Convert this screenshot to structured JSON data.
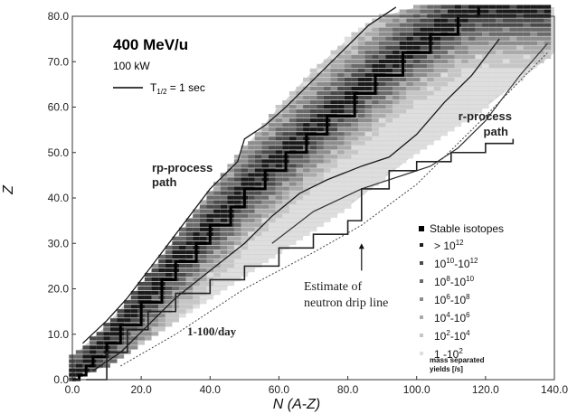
{
  "chart_data": {
    "type": "scatter",
    "title": "400 MeV/u",
    "subtitle": "100 kW",
    "xlabel": "N (A-Z)",
    "ylabel": "Z",
    "xlim": [
      0,
      140
    ],
    "ylim": [
      0,
      80
    ],
    "x_ticks": [
      "0.0",
      "20.0",
      "40.0",
      "60.0",
      "80.0",
      "100.0",
      "120.0",
      "140.0"
    ],
    "y_ticks": [
      "0.0",
      "10.0",
      "20.0",
      "30.0",
      "40.0",
      "50.0",
      "60.0",
      "70.0",
      "80.0"
    ],
    "half_life_label": "T",
    "half_life_sub": "1/2",
    "half_life_value": " = 1 sec",
    "legend_position": "bottom-right",
    "legend": {
      "stable": "Stable isotopes",
      "bins": [
        {
          "label": "> 10",
          "sup": "12",
          "color": "#1a1a1a"
        },
        {
          "label": "10",
          "sup": "10",
          "mid": "-10",
          "sup2": "12",
          "color": "#4a4a4a"
        },
        {
          "label": "10",
          "sup": "8",
          "mid": "-10",
          "sup2": "10",
          "color": "#6a6a6a"
        },
        {
          "label": "10",
          "sup": "6",
          "mid": "-10",
          "sup2": "8",
          "color": "#8c8c8c"
        },
        {
          "label": "10",
          "sup": "4",
          "mid": "-10",
          "sup2": "6",
          "color": "#aaaaaa"
        },
        {
          "label": "10",
          "sup": "2",
          "mid": "-10",
          "sup2": "4",
          "color": "#c6c6c6"
        },
        {
          "label": "1   -10",
          "sup": "2",
          "color": "#dedede"
        }
      ],
      "yields_note_line1": "mass separated",
      "yields_note_line2": "yields [/s]"
    },
    "annotations": {
      "rp_line1": "rp-process",
      "rp_line2": "path",
      "r_line1": "r-process",
      "r_line2": "path",
      "drip_line1": "Estimate of",
      "drip_line2": "neutron drip line",
      "day_label": "1-100/day"
    },
    "stable_valley": [
      [
        0,
        0
      ],
      [
        2,
        1
      ],
      [
        4,
        3
      ],
      [
        6,
        5
      ],
      [
        10,
        8
      ],
      [
        14,
        12
      ],
      [
        20,
        17
      ],
      [
        26,
        22
      ],
      [
        30,
        26
      ],
      [
        36,
        30
      ],
      [
        40,
        34
      ],
      [
        46,
        38
      ],
      [
        50,
        42
      ],
      [
        56,
        46
      ],
      [
        62,
        50
      ],
      [
        68,
        54
      ],
      [
        74,
        58
      ],
      [
        82,
        63
      ],
      [
        88,
        67
      ],
      [
        96,
        72
      ],
      [
        104,
        76
      ],
      [
        112,
        80
      ],
      [
        118,
        82
      ]
    ],
    "yield_band": {
      "lower": [
        [
          0,
          0
        ],
        [
          10,
          3
        ],
        [
          20,
          8
        ],
        [
          30,
          13
        ],
        [
          40,
          18
        ],
        [
          50,
          23
        ],
        [
          60,
          28
        ],
        [
          70,
          33
        ],
        [
          80,
          38
        ],
        [
          90,
          44
        ],
        [
          100,
          50
        ],
        [
          110,
          55
        ],
        [
          120,
          60
        ],
        [
          130,
          66
        ],
        [
          140,
          72
        ]
      ],
      "upper": [
        [
          0,
          5
        ],
        [
          10,
          12
        ],
        [
          20,
          21
        ],
        [
          30,
          31
        ],
        [
          40,
          41
        ],
        [
          50,
          51
        ],
        [
          60,
          60
        ],
        [
          70,
          68
        ],
        [
          80,
          75
        ],
        [
          90,
          80
        ],
        [
          100,
          82
        ],
        [
          110,
          82
        ],
        [
          120,
          82
        ],
        [
          130,
          82
        ],
        [
          140,
          82
        ]
      ]
    },
    "half_life_1s_contour_upper": [
      [
        3,
        8
      ],
      [
        10,
        13
      ],
      [
        16,
        18
      ],
      [
        24,
        26
      ],
      [
        30,
        32
      ],
      [
        40,
        42
      ],
      [
        48,
        48
      ],
      [
        50,
        53
      ],
      [
        56,
        56
      ],
      [
        62,
        60
      ],
      [
        70,
        66
      ],
      [
        78,
        72
      ],
      [
        86,
        78
      ],
      [
        94,
        82
      ]
    ],
    "half_life_1s_contour_lower": [
      [
        6,
        2
      ],
      [
        14,
        6
      ],
      [
        22,
        12
      ],
      [
        30,
        18
      ],
      [
        40,
        24
      ],
      [
        50,
        30
      ],
      [
        58,
        36
      ],
      [
        66,
        41
      ],
      [
        74,
        44
      ],
      [
        84,
        47
      ],
      [
        92,
        49
      ],
      [
        100,
        54
      ],
      [
        108,
        61
      ],
      [
        116,
        67
      ],
      [
        124,
        75
      ]
    ],
    "r_process_path": [
      [
        58,
        30
      ],
      [
        70,
        37
      ],
      [
        84,
        42
      ],
      [
        96,
        45
      ],
      [
        104,
        47
      ],
      [
        112,
        51
      ],
      [
        120,
        57
      ],
      [
        130,
        67
      ],
      [
        138,
        74
      ]
    ],
    "neutron_drip_line": [
      [
        4,
        0
      ],
      [
        10,
        6
      ],
      [
        16,
        11
      ],
      [
        22,
        15
      ],
      [
        30,
        19
      ],
      [
        40,
        22
      ],
      [
        50,
        25
      ],
      [
        60,
        29
      ],
      [
        70,
        32
      ],
      [
        80,
        35
      ],
      [
        84,
        42
      ],
      [
        92,
        46
      ],
      [
        100,
        48
      ],
      [
        110,
        50
      ],
      [
        120,
        52
      ],
      [
        128,
        53
      ]
    ],
    "day_limit_line": [
      [
        14,
        3
      ],
      [
        30,
        10
      ],
      [
        50,
        20
      ],
      [
        70,
        28
      ],
      [
        84,
        34
      ],
      [
        100,
        43
      ],
      [
        120,
        58
      ],
      [
        138,
        72
      ]
    ]
  }
}
